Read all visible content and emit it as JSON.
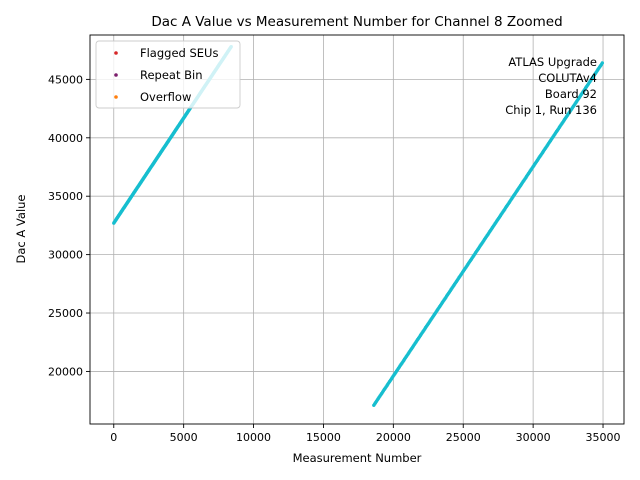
{
  "chart_data": {
    "type": "scatter",
    "title": "Dac A Value vs Measurement Number for Channel 8 Zoomed",
    "xlabel": "Measurement Number",
    "ylabel": "Dac A Value",
    "xlim": [
      -1700,
      36500
    ],
    "ylim": [
      15500,
      48800
    ],
    "xticks": [
      0,
      5000,
      10000,
      15000,
      20000,
      25000,
      30000,
      35000
    ],
    "yticks": [
      20000,
      25000,
      30000,
      35000,
      40000,
      45000
    ],
    "grid": true,
    "legend_position": "top-left",
    "legend": [
      {
        "label": "Flagged SEUs",
        "color": "#d62728"
      },
      {
        "label": "Repeat Bin",
        "color": "#7b1d6b"
      },
      {
        "label": "Overflow",
        "color": "#ff7f0e"
      }
    ],
    "annotation": [
      "ATLAS Upgrade",
      "COLUTAv4",
      "Board 92",
      "Chip 1, Run 136"
    ],
    "series": [
      {
        "color": "#17becf",
        "segments": [
          {
            "x": [
              0,
              8400
            ],
            "y": [
              32700,
              47800
            ]
          },
          {
            "x": [
              18600,
              34950
            ],
            "y": [
              17100,
              46400
            ]
          }
        ]
      }
    ]
  }
}
